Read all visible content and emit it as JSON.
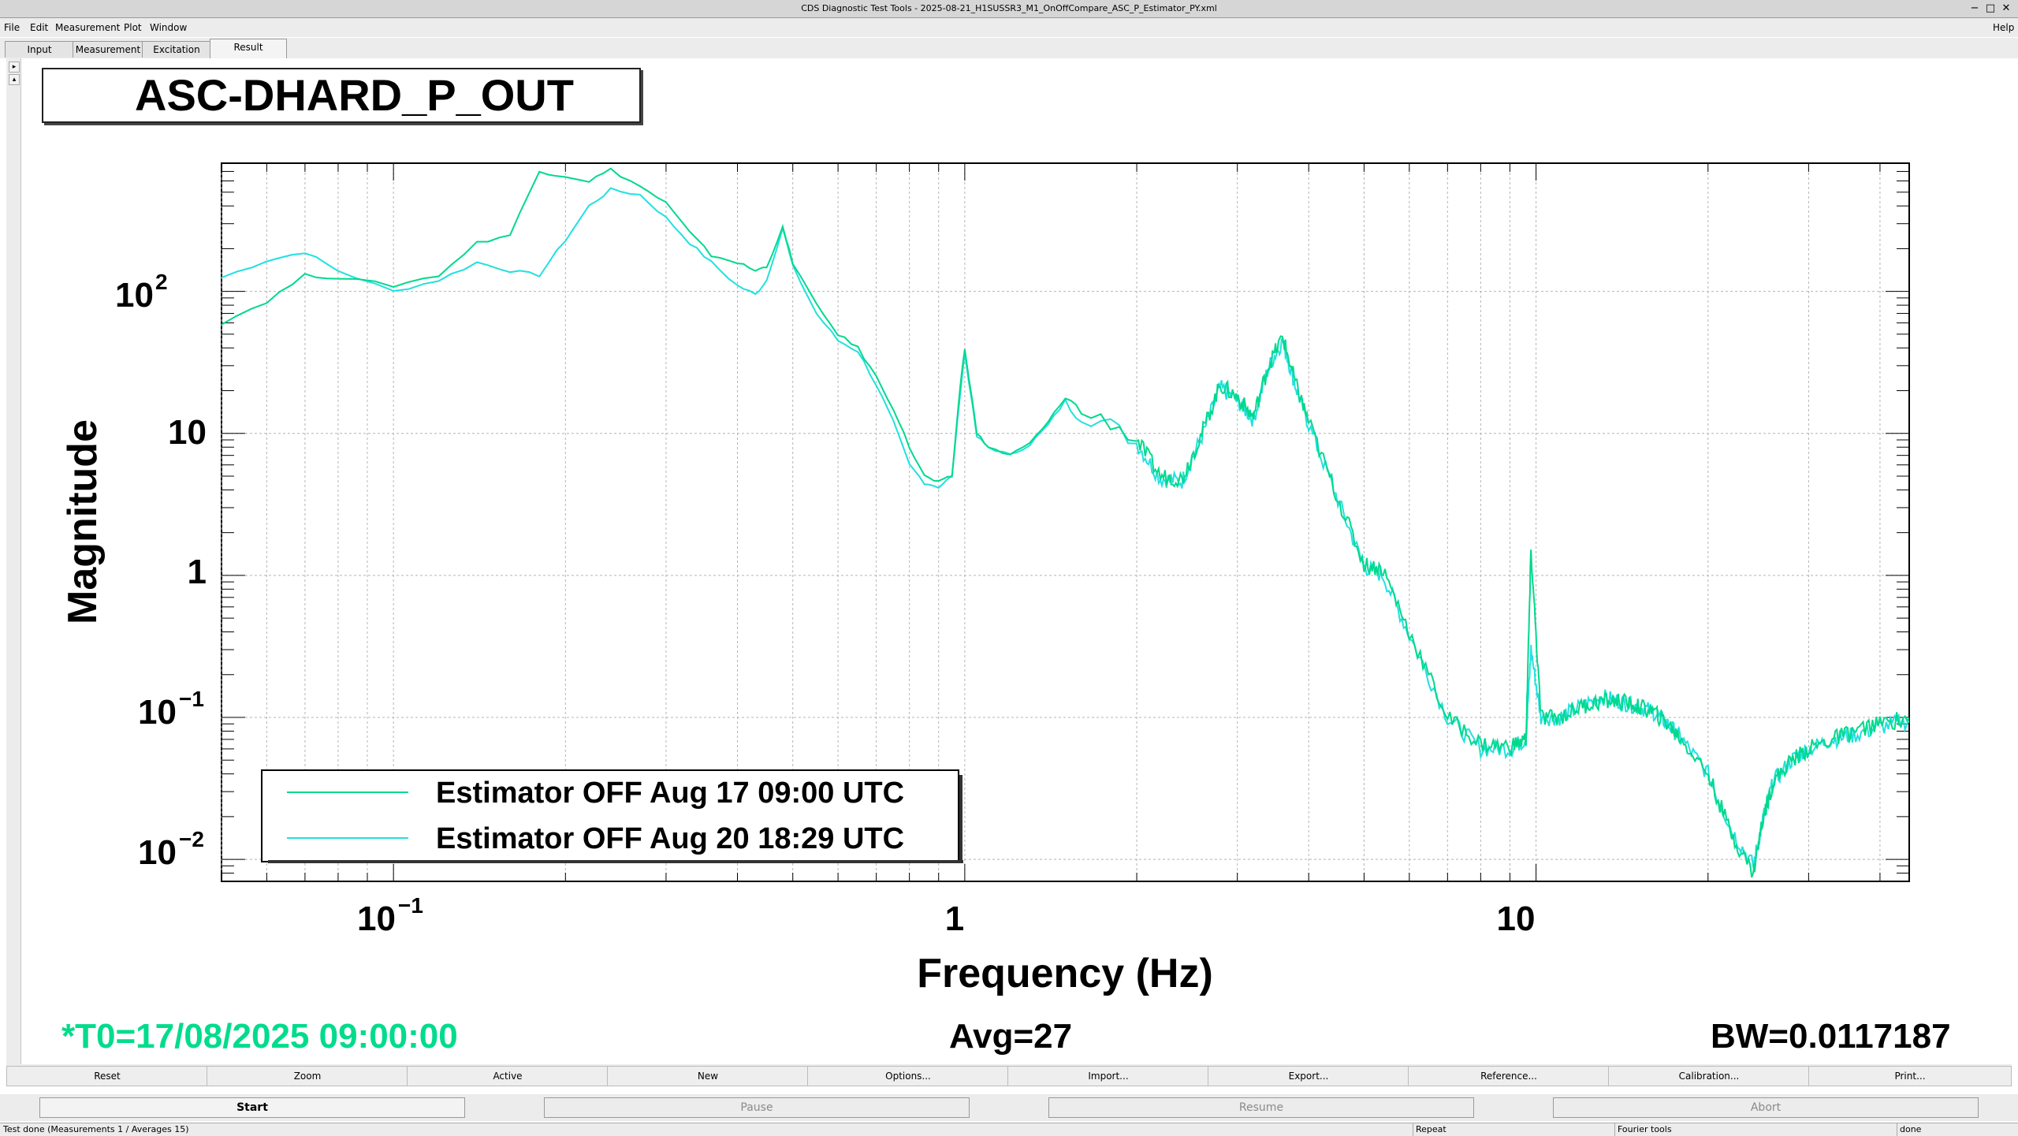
{
  "window": {
    "title": "CDS Diagnostic Test Tools - 2025-08-21_H1SUSSR3_M1_OnOffCompare_ASC_P_Estimator_PY.xml"
  },
  "menu": {
    "file": "File",
    "edit": "Edit",
    "measurement": "Measurement",
    "plot": "Plot",
    "window": "Window",
    "help": "Help"
  },
  "tabs": [
    "Input",
    "Measurement",
    "Excitation",
    "Result"
  ],
  "active_tab": "Result",
  "plot": {
    "title": "ASC-DHARD_P_OUT",
    "ylabel": "Magnitude",
    "xlabel": "Frequency (Hz)",
    "legend": [
      "Estimator OFF Aug 17 09:00 UTC",
      "Estimator OFF Aug 20 18:29 UTC"
    ],
    "t0": "*T0=17/08/2025 09:00:00",
    "avg": "Avg=27",
    "bw": "BW=0.0117187",
    "y_ticks": [
      "10",
      "1"
    ],
    "x_ticks": [
      "1",
      "10"
    ]
  },
  "chart_data": {
    "type": "line",
    "xscale": "log",
    "yscale": "log",
    "xlim": [
      0.05,
      45
    ],
    "ylim": [
      0.007,
      800
    ],
    "xlabel": "Frequency (Hz)",
    "ylabel": "Magnitude",
    "grid": true,
    "legend_position": "bottom-left",
    "series": [
      {
        "name": "Estimator OFF Aug 17 09:00 UTC",
        "color": "#00d98c",
        "x": [
          0.05,
          0.06,
          0.07,
          0.08,
          0.1,
          0.12,
          0.14,
          0.16,
          0.18,
          0.2,
          0.22,
          0.24,
          0.27,
          0.3,
          0.33,
          0.36,
          0.4,
          0.43,
          0.45,
          0.48,
          0.5,
          0.55,
          0.6,
          0.65,
          0.7,
          0.75,
          0.8,
          0.85,
          0.9,
          0.95,
          0.98,
          1.0,
          1.05,
          1.1,
          1.2,
          1.3,
          1.4,
          1.5,
          1.6,
          1.8,
          2.0,
          2.2,
          2.4,
          2.6,
          2.8,
          3.0,
          3.2,
          3.4,
          3.6,
          3.8,
          4.0,
          4.5,
          5.0,
          5.4,
          6.0,
          7.0,
          8.0,
          9.0,
          9.6,
          9.8,
          10.2,
          11,
          12,
          13,
          14,
          15,
          16,
          17,
          18,
          20,
          22,
          24,
          25,
          26,
          28,
          30,
          33,
          36,
          40,
          45
        ],
        "y": [
          60,
          85,
          130,
          125,
          110,
          130,
          220,
          250,
          700,
          650,
          600,
          720,
          550,
          420,
          260,
          180,
          160,
          140,
          150,
          280,
          160,
          80,
          50,
          40,
          25,
          15,
          8,
          5,
          4.5,
          5,
          20,
          40,
          10,
          8,
          7,
          8.5,
          12,
          18,
          14,
          12,
          9,
          5,
          4.8,
          10,
          22,
          18,
          13,
          30,
          48,
          22,
          12,
          3.5,
          1.2,
          1.1,
          0.4,
          0.1,
          0.065,
          0.062,
          0.07,
          1.5,
          0.1,
          0.1,
          0.12,
          0.13,
          0.13,
          0.12,
          0.11,
          0.09,
          0.07,
          0.04,
          0.015,
          0.008,
          0.02,
          0.035,
          0.05,
          0.06,
          0.07,
          0.08,
          0.09,
          0.1
        ]
      },
      {
        "name": "Estimator OFF Aug 20 18:29 UTC",
        "color": "#22e0e0",
        "x": [
          0.05,
          0.06,
          0.07,
          0.08,
          0.1,
          0.12,
          0.14,
          0.16,
          0.18,
          0.2,
          0.22,
          0.24,
          0.27,
          0.3,
          0.33,
          0.36,
          0.4,
          0.43,
          0.45,
          0.48,
          0.5,
          0.55,
          0.6,
          0.65,
          0.7,
          0.75,
          0.8,
          0.85,
          0.9,
          0.95,
          0.98,
          1.0,
          1.05,
          1.1,
          1.2,
          1.3,
          1.4,
          1.5,
          1.6,
          1.8,
          2.0,
          2.2,
          2.4,
          2.6,
          2.8,
          3.0,
          3.2,
          3.4,
          3.6,
          3.8,
          4.0,
          4.5,
          5.0,
          5.4,
          6.0,
          7.0,
          8.0,
          9.0,
          9.6,
          9.8,
          10.2,
          11,
          12,
          13,
          14,
          15,
          16,
          17,
          18,
          20,
          22,
          24,
          25,
          26,
          28,
          30,
          33,
          36,
          40,
          45
        ],
        "y": [
          125,
          165,
          190,
          140,
          100,
          120,
          160,
          140,
          130,
          230,
          400,
          520,
          480,
          330,
          220,
          160,
          110,
          95,
          120,
          280,
          150,
          70,
          45,
          38,
          22,
          12,
          6,
          4.5,
          4.2,
          5,
          18,
          37,
          9.5,
          8,
          7,
          8.4,
          11.5,
          17,
          13.5,
          11.5,
          8.5,
          4.8,
          4.6,
          9.5,
          21,
          17,
          12.5,
          29,
          45,
          21,
          11.5,
          3.4,
          1.15,
          1.0,
          0.38,
          0.1,
          0.06,
          0.06,
          0.07,
          0.3,
          0.1,
          0.1,
          0.12,
          0.14,
          0.13,
          0.12,
          0.11,
          0.09,
          0.07,
          0.04,
          0.016,
          0.009,
          0.02,
          0.035,
          0.05,
          0.06,
          0.07,
          0.075,
          0.085,
          0.095
        ]
      }
    ]
  }
}
